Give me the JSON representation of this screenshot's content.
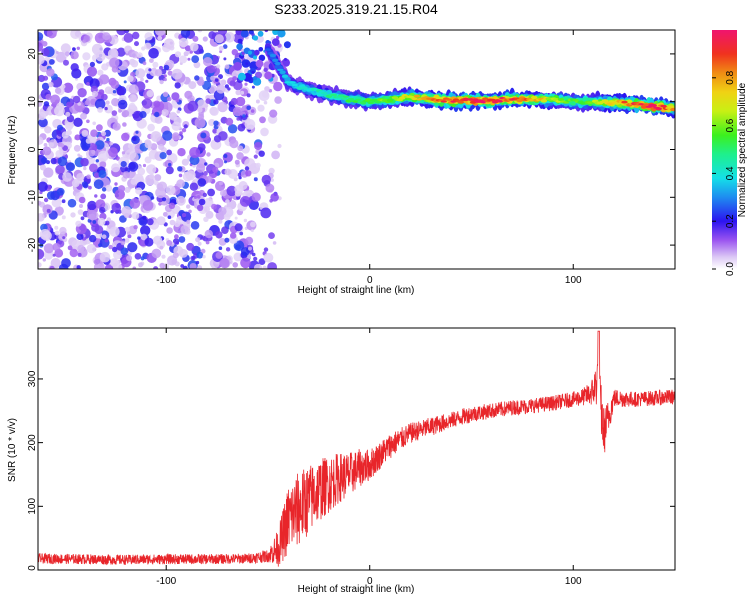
{
  "title": "S233.2025.319.21.15.R04",
  "colors": {
    "snr_line": "#e8252a",
    "background_points": "#8a3cf0",
    "frame": "#000000"
  },
  "chart_data": [
    {
      "type": "heatmap",
      "xlabel": "Height of straight line (km)",
      "ylabel": "Frequency (Hz)",
      "xlim": [
        -163,
        150
      ],
      "ylim": [
        -25,
        25
      ],
      "xticks": [
        -100,
        0,
        100
      ],
      "xtick_labels": [
        "-100",
        "0",
        "100"
      ],
      "yticks": [
        -20,
        -10,
        0,
        10,
        20
      ],
      "ytick_labels": [
        "-20",
        "-10",
        "0",
        "10",
        "20"
      ],
      "noise_region_x": [
        -163,
        -50
      ],
      "signal_band": {
        "x": [
          -50,
          -40,
          -30,
          -20,
          -10,
          0,
          10,
          20,
          30,
          40,
          50,
          60,
          70,
          80,
          90,
          100,
          110,
          120,
          130,
          140,
          150
        ],
        "freq_hz": [
          21,
          14,
          12.5,
          11.5,
          10.5,
          10,
          10.5,
          11,
          10.5,
          10.2,
          10.2,
          10.2,
          10.5,
          10.5,
          10.4,
          10,
          10,
          9.8,
          9.5,
          9,
          8.5
        ],
        "amplitude": [
          0.2,
          0.3,
          0.35,
          0.4,
          0.45,
          0.5,
          0.55,
          0.65,
          0.75,
          0.85,
          0.9,
          0.88,
          0.85,
          0.75,
          0.6,
          0.5,
          0.55,
          0.7,
          0.85,
          0.95,
          0.7
        ]
      },
      "colorbar": {
        "label": "Normalized spectral amplitude",
        "ticks": [
          0.0,
          0.2,
          0.4,
          0.6,
          0.8
        ],
        "tick_labels": [
          "0.0",
          "0.2",
          "0.4",
          "0.6",
          "0.8"
        ],
        "range": [
          0,
          1
        ]
      }
    },
    {
      "type": "line",
      "xlabel": "Height of straight line (km)",
      "ylabel": "SNR (10 * v/v)",
      "xlim": [
        -163,
        150
      ],
      "ylim": [
        0,
        380
      ],
      "xticks": [
        -100,
        0,
        100
      ],
      "xtick_labels": [
        "-100",
        "0",
        "100"
      ],
      "yticks": [
        0,
        100,
        200,
        300
      ],
      "ytick_labels": [
        "0",
        "100",
        "200",
        "300"
      ],
      "x": [
        -163,
        -140,
        -120,
        -100,
        -80,
        -60,
        -50,
        -45,
        -42,
        -40,
        -35,
        -30,
        -25,
        -20,
        -15,
        -10,
        -5,
        0,
        5,
        10,
        15,
        20,
        25,
        30,
        40,
        50,
        60,
        70,
        80,
        90,
        100,
        105,
        108,
        110,
        112,
        115,
        120,
        130,
        140,
        150
      ],
      "snr_mean": [
        18,
        17,
        16,
        17,
        17,
        18,
        22,
        35,
        60,
        80,
        95,
        110,
        125,
        135,
        145,
        150,
        160,
        165,
        180,
        195,
        205,
        215,
        220,
        225,
        235,
        245,
        250,
        255,
        258,
        262,
        268,
        272,
        276,
        282,
        300,
        215,
        270,
        268,
        270,
        272
      ],
      "snr_noise": [
        8,
        8,
        8,
        8,
        8,
        8,
        10,
        30,
        45,
        55,
        60,
        55,
        50,
        45,
        40,
        35,
        30,
        25,
        22,
        20,
        18,
        16,
        15,
        15,
        13,
        13,
        12,
        12,
        12,
        12,
        12,
        14,
        18,
        25,
        45,
        40,
        15,
        12,
        12,
        12
      ]
    }
  ]
}
